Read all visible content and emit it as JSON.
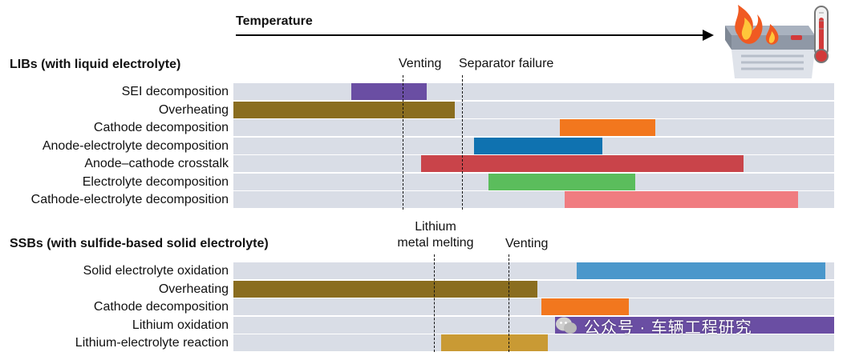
{
  "header": {
    "temperature_label": "Temperature"
  },
  "libs": {
    "title": "LIBs (with liquid electrolyte)",
    "markers": [
      {
        "label": "Venting"
      },
      {
        "label": "Separator failure"
      }
    ],
    "rows": [
      {
        "label": "SEI decomposition",
        "color": "#6a4ea3"
      },
      {
        "label": "Overheating",
        "color": "#8a6d1f"
      },
      {
        "label": "Cathode decomposition",
        "color": "#f2771e"
      },
      {
        "label": "Anode-electrolyte decomposition",
        "color": "#0f72b0"
      },
      {
        "label": "Anode–cathode crosstalk",
        "color": "#c9444a"
      },
      {
        "label": "Electrolyte decomposition",
        "color": "#5bbd5c"
      },
      {
        "label": "Cathode-electrolyte decomposition",
        "color": "#f07c80"
      }
    ]
  },
  "ssbs": {
    "title": "SSBs (with sulfide-based solid electrolyte)",
    "markers": [
      {
        "label_line1": "Lithium",
        "label_line2": "metal melting"
      },
      {
        "label": "Venting"
      }
    ],
    "rows": [
      {
        "label": "Solid electrolyte oxidation",
        "color": "#4a97cb"
      },
      {
        "label": "Overheating",
        "color": "#8a6d1f"
      },
      {
        "label": "Cathode decomposition",
        "color": "#f2771e"
      },
      {
        "label": "Lithium oxidation",
        "color": "#6a4ea3"
      },
      {
        "label": "Lithium-electrolyte reaction",
        "color": "#c99a34"
      }
    ]
  },
  "watermark": {
    "text": "公众号 · 车辆工程研究"
  }
}
